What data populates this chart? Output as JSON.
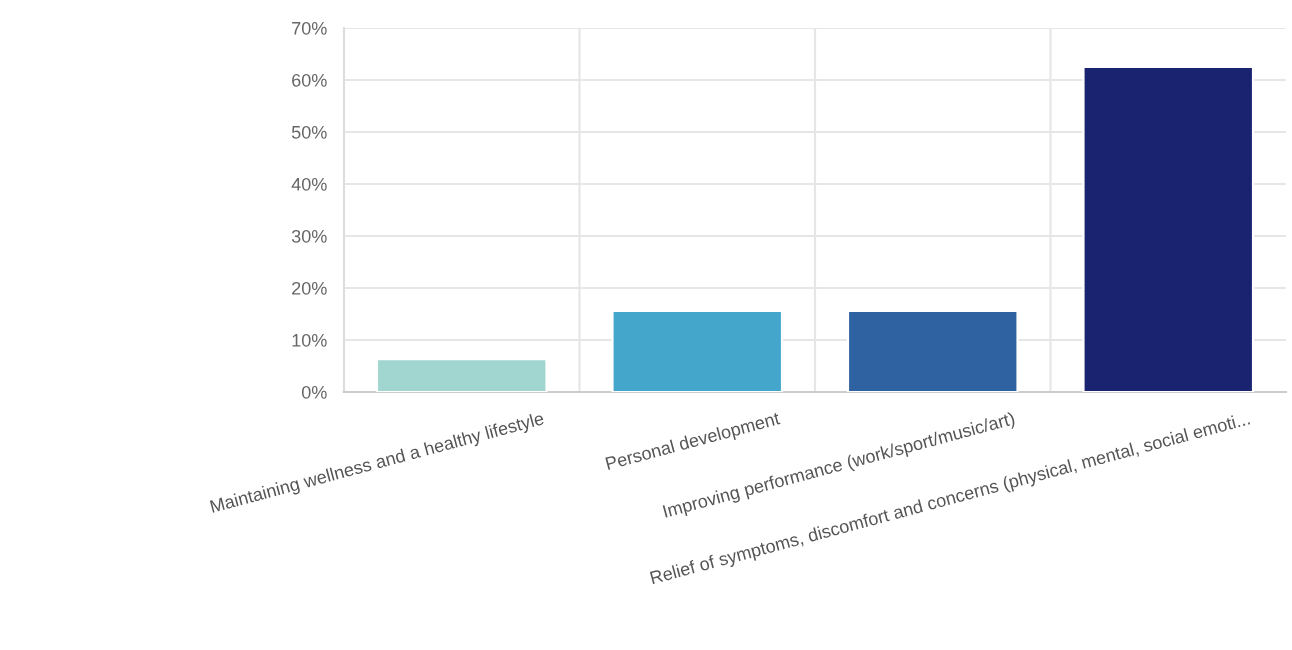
{
  "chart_data": {
    "type": "bar",
    "categories": [
      "Maintaining wellness and a healthy lifestyle",
      "Personal development",
      "Improving performance (work/sport/music/art)",
      "Relief of symptoms, discomfort and concerns (physical, mental, social emoti..."
    ],
    "values": [
      6.3,
      15.6,
      15.6,
      62.5
    ],
    "colors": [
      "#a0d6cf",
      "#45a6cc",
      "#2f62a0",
      "#1a2370"
    ],
    "ylim": [
      0,
      70
    ],
    "yticks": [
      {
        "value": 0,
        "label": "0%"
      },
      {
        "value": 10,
        "label": "10%"
      },
      {
        "value": 20,
        "label": "20%"
      },
      {
        "value": 30,
        "label": "30%"
      },
      {
        "value": 40,
        "label": "40%"
      },
      {
        "value": 50,
        "label": "50%"
      },
      {
        "value": 60,
        "label": "60%"
      },
      {
        "value": 70,
        "label": "70%"
      }
    ],
    "grid": true
  }
}
